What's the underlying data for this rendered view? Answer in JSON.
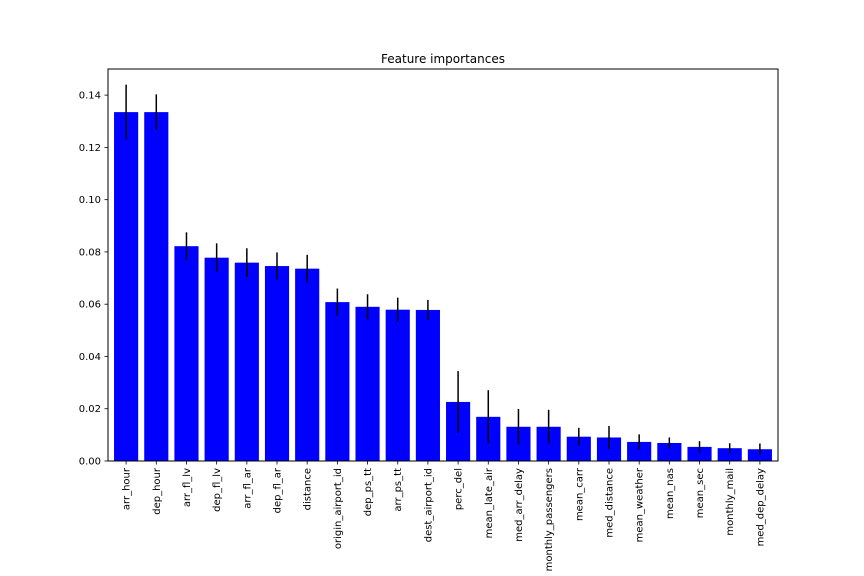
{
  "chart_data": {
    "type": "bar",
    "title": "Feature importances",
    "xlabel": "",
    "ylabel": "",
    "categories": [
      "arr_hour",
      "dep_hour",
      "arr_fl_lv",
      "dep_fl_lv",
      "arr_fl_ar",
      "dep_fl_ar",
      "distance",
      "origin_airport_id",
      "dep_ps_tt",
      "arr_ps_tt",
      "dest_airport_id",
      "perc_del",
      "mean_late_air",
      "med_arr_delay",
      "monthly_passengers",
      "mean_carr",
      "med_distance",
      "mean_weather",
      "mean_nas",
      "mean_sec",
      "monthly_mail",
      "med_dep_delay"
    ],
    "values": [
      0.1335,
      0.1335,
      0.0822,
      0.0778,
      0.0759,
      0.0746,
      0.0736,
      0.0608,
      0.059,
      0.0579,
      0.0578,
      0.0226,
      0.0169,
      0.0131,
      0.0131,
      0.0093,
      0.009,
      0.0073,
      0.0069,
      0.0054,
      0.0049,
      0.0045
    ],
    "errors": [
      0.0105,
      0.0068,
      0.0053,
      0.0055,
      0.0055,
      0.0052,
      0.0053,
      0.0052,
      0.0048,
      0.0046,
      0.0038,
      0.0118,
      0.0102,
      0.0068,
      0.0065,
      0.0034,
      0.0044,
      0.0029,
      0.0021,
      0.0022,
      0.0019,
      0.0022
    ],
    "ylim": [
      0,
      0.15
    ],
    "yticks": [
      0.0,
      0.02,
      0.04,
      0.06,
      0.08,
      0.1,
      0.12,
      0.14
    ],
    "ytick_labels": [
      "0.00",
      "0.02",
      "0.04",
      "0.06",
      "0.08",
      "0.10",
      "0.12",
      "0.14"
    ],
    "grid": false,
    "bar_color": "#0000ff",
    "error_color": "#000000"
  }
}
